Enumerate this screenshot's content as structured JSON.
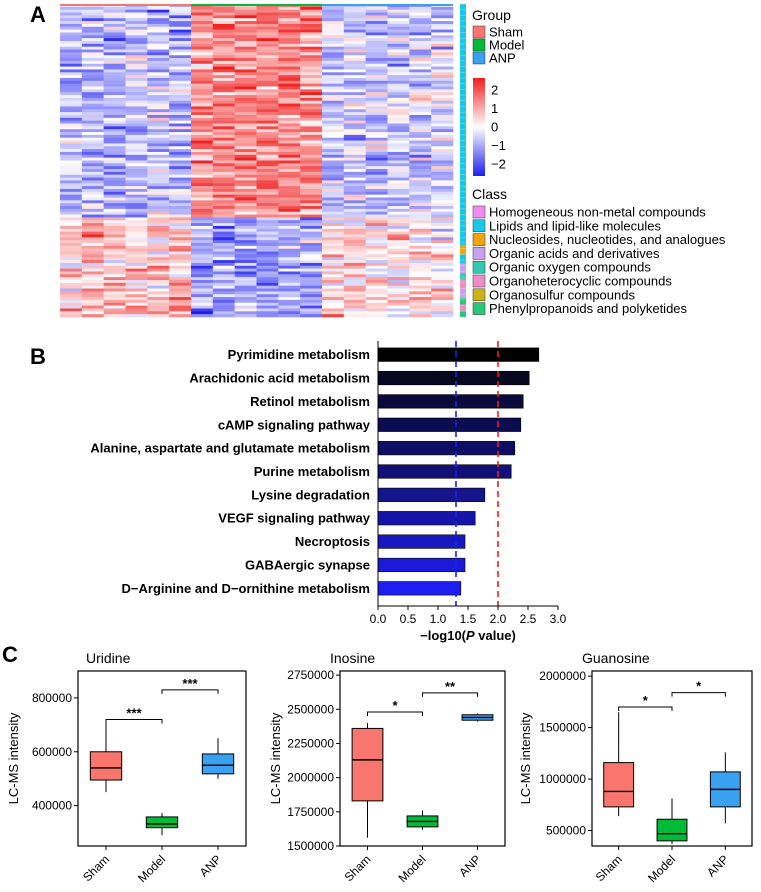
{
  "panel_labels": {
    "a": "A",
    "b": "B",
    "c": "C"
  },
  "chart_data": [
    {
      "type": "heatmap",
      "panel": "A",
      "groups": [
        "Sham",
        "Model",
        "ANP"
      ],
      "sample_group_counts": [
        6,
        6,
        6
      ],
      "group_colors": [
        "#f8766d",
        "#00ba38",
        "#3aa0f0"
      ],
      "color_scale": {
        "min": -2,
        "max": 2,
        "ticks": [
          "2",
          "1",
          "0",
          "−1",
          "−2"
        ],
        "low": "#1e1ef0",
        "mid": "#ffffff",
        "high": "#f01e1e"
      },
      "legend_group_title": "Group",
      "legend_class_title": "Class",
      "classes": [
        {
          "name": "Homogeneous non-metal compounds",
          "color": "#f08cf0"
        },
        {
          "name": "Lipids and lipid-like molecules",
          "color": "#19c8e6"
        },
        {
          "name": "Nucleosides, nucleotides, and analogues",
          "color": "#f0a50a"
        },
        {
          "name": "Organic acids and derivatives",
          "color": "#c8a0f0"
        },
        {
          "name": "Organic oxygen compounds",
          "color": "#32c8b4"
        },
        {
          "name": "Organoheterocyclic compounds",
          "color": "#f08cc8"
        },
        {
          "name": "Organosulfur compounds",
          "color": "#c8b414"
        },
        {
          "name": "Phenylpropanoids and polyketides",
          "color": "#28c878"
        }
      ]
    },
    {
      "type": "bar",
      "orientation": "horizontal",
      "panel": "B",
      "categories": [
        "Pyrimidine metabolism",
        "Arachidonic acid metabolism",
        "Retinol metabolism",
        "cAMP signaling pathway",
        "Alanine, aspartate and glutamate metabolism",
        "Purine metabolism",
        "Lysine degradation",
        "VEGF signaling pathway",
        "Necroptosis",
        "GABAergic synapse",
        "D−Arginine and D−ornithine metabolism"
      ],
      "values": [
        2.68,
        2.52,
        2.42,
        2.38,
        2.28,
        2.22,
        1.78,
        1.62,
        1.45,
        1.45,
        1.38
      ],
      "bar_colors": [
        "#000000",
        "#080820",
        "#0a0a3c",
        "#0c0c50",
        "#0e0e64",
        "#101078",
        "#14148c",
        "#1414a8",
        "#1818c0",
        "#1a1ad8",
        "#1e1ef0"
      ],
      "xlabel_prefix": "−log10(",
      "xlabel_italic": "P",
      "xlabel_suffix": " value)",
      "xlim": [
        0,
        3.0
      ],
      "xticks": [
        "0.0",
        "0.5",
        "1.0",
        "1.5",
        "2.0",
        "2.5",
        "3.0"
      ],
      "reference_lines": [
        {
          "value": 1.3,
          "color": "#1e1ef0"
        },
        {
          "value": 2.0,
          "color": "#f01e1e"
        }
      ]
    },
    {
      "type": "box",
      "panel": "C",
      "title": "Uridine",
      "ylabel": "LC-MS intensity",
      "categories": [
        "Sham",
        "Model",
        "ANP"
      ],
      "ylim": [
        250000,
        900000
      ],
      "yticks": [
        400000,
        600000,
        800000
      ],
      "ytick_labels": [
        "400000",
        "600000",
        "800000"
      ],
      "boxes": [
        {
          "min": 450000,
          "q1": 495000,
          "median": 540000,
          "q3": 600000,
          "max": 720000,
          "color": "#f8766d"
        },
        {
          "min": 290000,
          "q1": 318000,
          "median": 332000,
          "q3": 358000,
          "max": 372000,
          "color": "#00ba38"
        },
        {
          "min": 500000,
          "q1": 518000,
          "median": 550000,
          "q3": 592000,
          "max": 650000,
          "color": "#3aa0f0"
        }
      ],
      "significance": [
        {
          "from": 0,
          "to": 1,
          "label": "***",
          "y": 720000
        },
        {
          "from": 1,
          "to": 2,
          "label": "***",
          "y": 830000
        }
      ]
    },
    {
      "type": "box",
      "panel": "C",
      "title": "Inosine",
      "ylabel": "LC-MS intensity",
      "categories": [
        "Sham",
        "Model",
        "ANP"
      ],
      "ylim": [
        1500000,
        2780000
      ],
      "yticks": [
        1500000,
        1750000,
        2000000,
        2250000,
        2500000,
        2750000
      ],
      "ytick_labels": [
        "1500000",
        "1750000",
        "2000000",
        "2250000",
        "2500000",
        "2750000"
      ],
      "boxes": [
        {
          "min": 1560000,
          "q1": 1830000,
          "median": 2130000,
          "q3": 2360000,
          "max": 2400000,
          "color": "#f8766d"
        },
        {
          "min": 1620000,
          "q1": 1640000,
          "median": 1680000,
          "q3": 1720000,
          "max": 1760000,
          "color": "#00ba38"
        },
        {
          "min": 2410000,
          "q1": 2420000,
          "median": 2440000,
          "q3": 2460000,
          "max": 2470000,
          "color": "#3aa0f0"
        }
      ],
      "significance": [
        {
          "from": 0,
          "to": 1,
          "label": "*",
          "y": 2480000
        },
        {
          "from": 1,
          "to": 2,
          "label": "**",
          "y": 2620000
        }
      ]
    },
    {
      "type": "box",
      "panel": "C",
      "title": "Guanosine",
      "ylabel": "LC-MS intensity",
      "categories": [
        "Sham",
        "Model",
        "ANP"
      ],
      "ylim": [
        350000,
        2050000
      ],
      "yticks": [
        500000,
        1000000,
        1500000,
        2000000
      ],
      "ytick_labels": [
        "500000",
        "1000000",
        "1500000",
        "2000000"
      ],
      "boxes": [
        {
          "min": 640000,
          "q1": 730000,
          "median": 880000,
          "q3": 1160000,
          "max": 1650000,
          "color": "#f8766d"
        },
        {
          "min": 370000,
          "q1": 400000,
          "median": 470000,
          "q3": 610000,
          "max": 810000,
          "color": "#00ba38"
        },
        {
          "min": 570000,
          "q1": 730000,
          "median": 900000,
          "q3": 1070000,
          "max": 1260000,
          "color": "#3aa0f0"
        }
      ],
      "significance": [
        {
          "from": 0,
          "to": 1,
          "label": "*",
          "y": 1700000
        },
        {
          "from": 1,
          "to": 2,
          "label": "*",
          "y": 1840000
        }
      ]
    }
  ]
}
